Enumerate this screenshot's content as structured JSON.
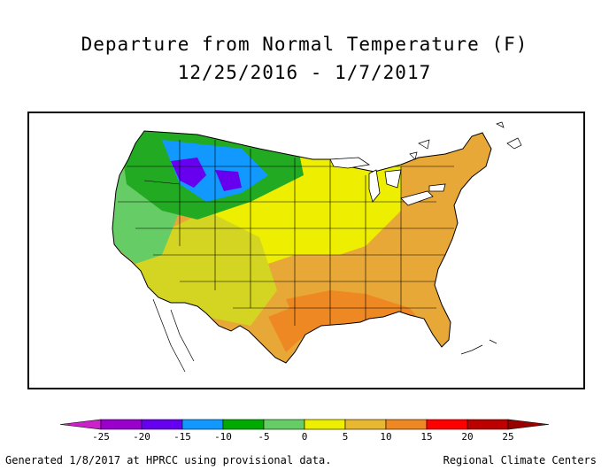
{
  "title": "Departure from Normal Temperature (F)",
  "date_range": "12/25/2016 - 1/7/2017",
  "legend": {
    "ticks": [
      "-25",
      "-20",
      "-15",
      "-10",
      "-5",
      "0",
      "5",
      "10",
      "15",
      "20",
      "25"
    ],
    "colors": [
      "#cc22cc",
      "#9900cc",
      "#6600ee",
      "#1199ff",
      "#00aa00",
      "#66cc66",
      "#eeee00",
      "#e8b830",
      "#ee8822",
      "#ff0000",
      "#bb0000",
      "#990000"
    ]
  },
  "regions": {
    "northwest": {
      "color": "#22aa22",
      "departure": "-10 to -5"
    },
    "northern_rockies": {
      "color": "#1199ff",
      "departure": "-15 to -10"
    },
    "rockies_core": {
      "color": "#6600ee",
      "departure": "-20 to -15"
    },
    "west_coast": {
      "color": "#66cc66",
      "departure": "-5 to 0"
    },
    "southwest_plains": {
      "color": "#dddd22",
      "departure": "0 to 5"
    },
    "midwest": {
      "color": "#eeee00",
      "departure": "0 to 5"
    },
    "east_south": {
      "color": "#e8a838",
      "departure": "5 to 10"
    },
    "gulf": {
      "color": "#ee8822",
      "departure": "10 to 15"
    }
  },
  "footer": {
    "left": "Generated 1/8/2017 at HPRCC using provisional data.",
    "right": "Regional Climate Centers"
  }
}
